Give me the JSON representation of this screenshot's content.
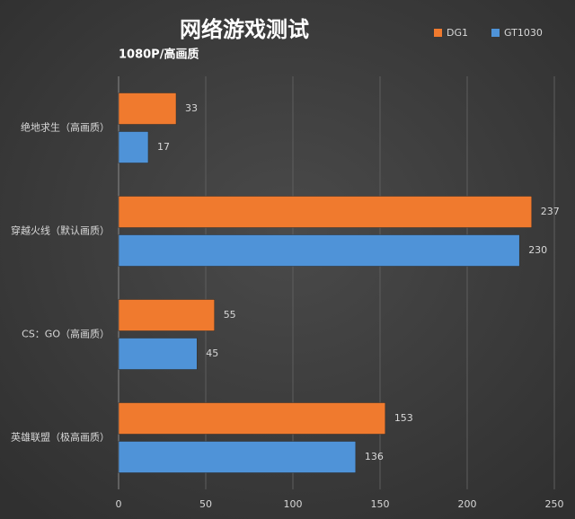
{
  "chart_data": {
    "type": "barh",
    "title": "网络游戏测试",
    "subtitle": "1080P/高画质",
    "categories": [
      "绝地求生（高画质）",
      "穿越火线（默认画质）",
      "CS：GO（高画质）",
      "英雄联盟（极高画质）"
    ],
    "series": [
      {
        "name": "DG1",
        "color": "#f07a2e",
        "values": [
          33,
          237,
          55,
          153
        ]
      },
      {
        "name": "GT1030",
        "color": "#4f93d8",
        "values": [
          17,
          230,
          45,
          136
        ]
      }
    ],
    "xlim": [
      0,
      250
    ],
    "xticks": [
      0,
      50,
      100,
      150,
      200,
      250
    ],
    "grid": true,
    "legend": "top-right"
  }
}
